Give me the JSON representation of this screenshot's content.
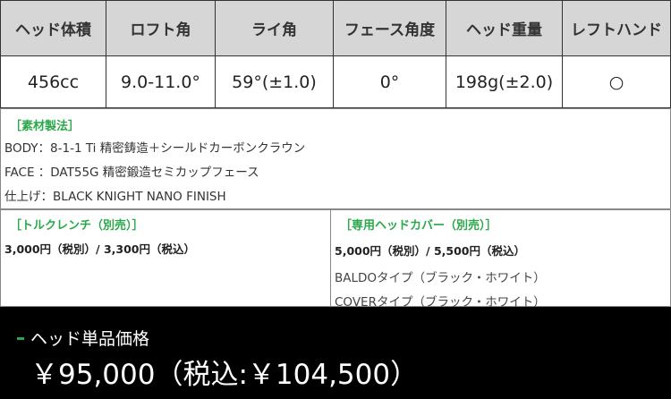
{
  "spec_table": {
    "headers": [
      "ヘッド体積",
      "ロフト角",
      "ライ角",
      "フェース角度",
      "ヘッド重量",
      "レフトハンド"
    ],
    "values": [
      "456cc",
      "9.0-11.0°",
      "59°(±1.0)",
      "0°",
      "198g(±2.0)",
      "○"
    ]
  },
  "material": {
    "title": "［素材製法］",
    "lines": [
      "BODY：8-1-1 Ti 精密鋳造＋シールドカーボンクラウン",
      "FACE ：DAT55G 精密鍛造セミカップフェース",
      "仕上げ：BLACK KNIGHT NANO FINISH"
    ]
  },
  "torque_wrench": {
    "title": "［トルクレンチ（別売）］",
    "price": "3,000円（税別）/ 3,300円（税込）"
  },
  "head_cover": {
    "title": "［専用ヘッドカバー（別売）］",
    "price": "5,000円（税別）/ 5,500円（税込）",
    "types": [
      "BALDOタイプ（ブラック・ホワイト）",
      "COVERタイプ（ブラック・ホワイト）"
    ]
  },
  "footer": {
    "title": "ヘッド単品価格",
    "price": "￥95,000（税込:￥104,500）"
  },
  "colors": {
    "accent": "#2aa84a",
    "header_bg": "#d6d6d6",
    "footer_bg": "#000000"
  }
}
